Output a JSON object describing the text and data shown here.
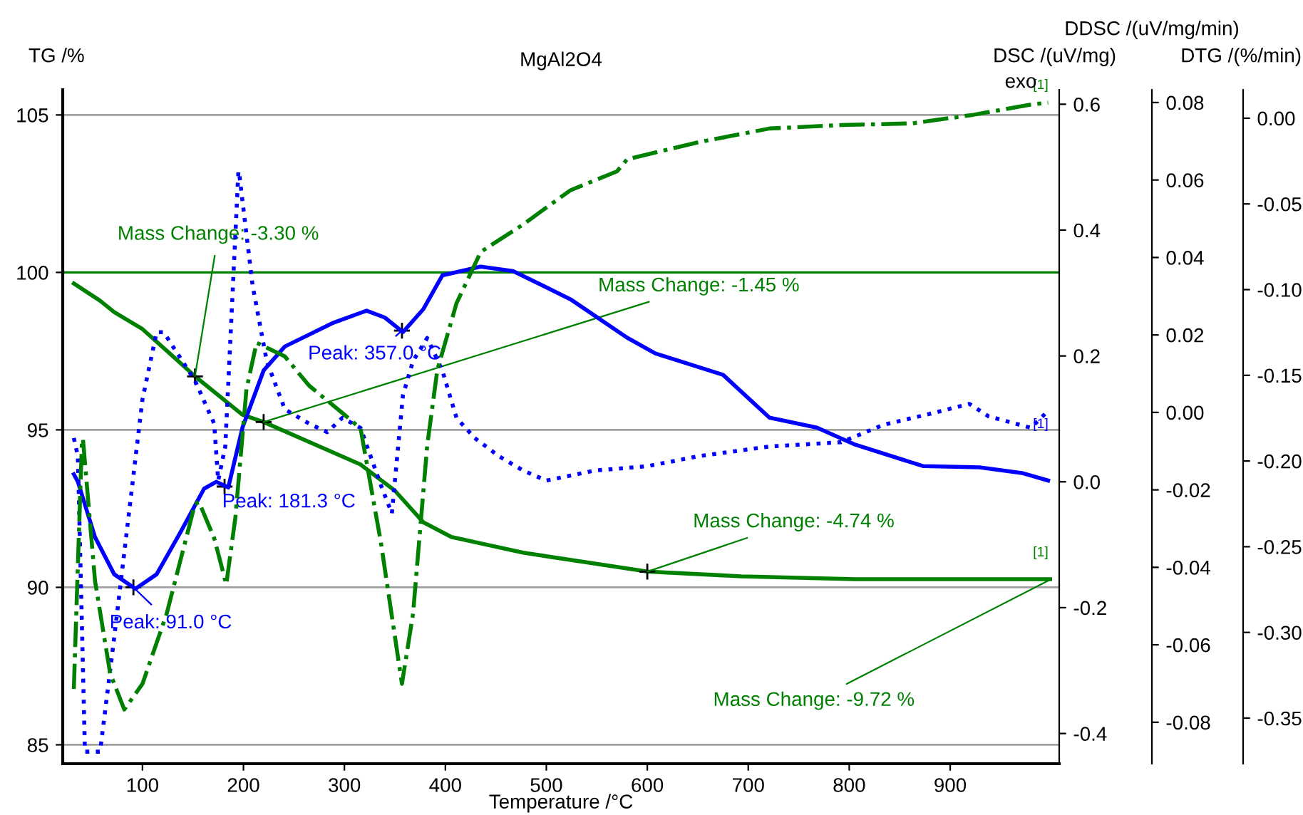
{
  "chart_data": [
    {
      "type": "line",
      "title": "MgAl2O4",
      "xlabel": "Temperature /°C",
      "ylabel": "TG /%",
      "y2label": "DSC /(uV/mg)",
      "y3label": "DDSC /(uV/mg/min)",
      "xlim": [
        21,
        1008
      ],
      "xticks": [
        100,
        200,
        300,
        400,
        500,
        600,
        700,
        800,
        900
      ],
      "ylim": [
        84.4,
        105.8
      ],
      "yticks": [
        85,
        90,
        95,
        100,
        105
      ],
      "y2lim": [
        -0.448,
        0.623
      ],
      "y2ticks": [
        {
          "value": -0.4,
          "label": "-0.4"
        },
        {
          "value": -0.2,
          "label": "-0.2"
        },
        {
          "value": 0,
          "label": "0.0"
        },
        0.2,
        0.4,
        0.6
      ],
      "y3lim": [
        -0.0907,
        0.0833
      ],
      "y3ticks": [
        {
          "value": -0.08,
          "label": "-0.08"
        },
        {
          "value": -0.06,
          "label": "-0.06"
        },
        {
          "value": -0.04,
          "label": "-0.04"
        },
        {
          "value": -0.02,
          "label": "-0.02"
        },
        {
          "value": 0,
          "label": "0.00"
        },
        0.02,
        0.04,
        0.06,
        0.08
      ],
      "grid": "y",
      "series": [
        {
          "color": "#008000",
          "line_style": "solid",
          "x": [
            32,
            58,
            72,
            100,
            128,
            152,
            199,
            220,
            316,
            350,
            378,
            406,
            477,
            600,
            693,
            806,
            999
          ],
          "values": [
            99.65,
            99.1,
            98.74,
            98.2,
            97.4,
            96.7,
            95.48,
            95.25,
            93.9,
            93.07,
            92.07,
            91.6,
            91.1,
            90.5,
            90.35,
            90.26,
            90.26
          ]
        },
        {
          "axis": "y2",
          "color": "#0000ff",
          "line_style": "solid",
          "x": [
            32,
            36,
            53,
            72,
            93,
            114,
            138,
            161,
            173,
            185,
            199,
            220,
            241,
            288,
            322,
            340,
            358,
            378,
            397,
            435,
            467,
            524,
            580,
            608,
            675,
            721,
            768,
            806,
            873,
            929,
            971,
            997
          ],
          "values": [
            0.012,
            0.0,
            -0.088,
            -0.147,
            -0.17,
            -0.147,
            -0.079,
            -0.011,
            0.0,
            -0.009,
            0.086,
            0.177,
            0.215,
            0.252,
            0.272,
            0.261,
            0.238,
            0.274,
            0.328,
            0.342,
            0.335,
            0.29,
            0.229,
            0.204,
            0.17,
            0.102,
            0.086,
            0.059,
            0.025,
            0.023,
            0.014,
            0.002
          ]
        },
        {
          "axis": "y3",
          "color": "#0000ff",
          "line_style": "dotted",
          "x": [
            32,
            36,
            43,
            58,
            72,
            100,
            114,
            121,
            152,
            171,
            175,
            182,
            195,
            196,
            209,
            223,
            241,
            265,
            283,
            298,
            316,
            336,
            347,
            358,
            368,
            382,
            397,
            411,
            429,
            453,
            477,
            500,
            548,
            600,
            651,
            721,
            792,
            834,
            881,
            919,
            938,
            980,
            997
          ],
          "values": [
            -0.0066,
            -0.0113,
            -0.0876,
            -0.0876,
            -0.0581,
            0.0034,
            0.0207,
            0.0207,
            0.0082,
            -0.0029,
            -0.0176,
            -0.0088,
            0.0623,
            0.0612,
            0.0329,
            0.0133,
            0.0008,
            -0.0029,
            -0.0051,
            -0.0014,
            -0.004,
            -0.0187,
            -0.0261,
            0.0045,
            0.0133,
            0.0192,
            0.0108,
            -0.0014,
            -0.0066,
            -0.0113,
            -0.015,
            -0.0176,
            -0.015,
            -0.0139,
            -0.0113,
            -0.0088,
            -0.0077,
            -0.0032,
            -0.0003,
            0.0022,
            -0.001,
            -0.004,
            0.0004
          ]
        }
      ],
      "ref_lines": [
        {
          "axis": "y",
          "value": 100,
          "color": "#008000"
        }
      ],
      "annotations": [
        {
          "text": "Mass Change: -3.30 %",
          "x": 152,
          "y": 96.7
        },
        {
          "text": "Mass Change: -1.45 %",
          "x": 220,
          "y": 95.25
        },
        {
          "text": "Mass Change: -4.74 %",
          "x": 600,
          "y": 90.5
        },
        {
          "text": "Mass Change: -9.72 %",
          "x": 1000,
          "y": 90.26
        },
        {
          "text": "Peak: 91.0 °C",
          "x": 91,
          "y": 90.0
        },
        {
          "text": "Peak: 181.3 °C",
          "x": 181.3,
          "y": 93.2
        },
        {
          "text": "Peak: 357.0 °C",
          "x": 357,
          "y": 98.15
        },
        "[1]",
        "[1]",
        "[1]",
        "exo"
      ]
    },
    {
      "type": "line",
      "ylabel": "DTG /(%/min)",
      "tick_labels": "y",
      "xlim": [
        21,
        1008
      ],
      "ylim": [
        -0.3766,
        0.0166
      ],
      "yticks": [
        {
          "value": -0.35,
          "label": "-0.35"
        },
        {
          "value": -0.3,
          "label": "-0.30"
        },
        {
          "value": -0.25,
          "label": "-0.25"
        },
        {
          "value": -0.2,
          "label": "-0.20"
        },
        {
          "value": -0.15,
          "label": "-0.15"
        },
        {
          "value": -0.1,
          "label": "-0.10"
        },
        {
          "value": -0.05,
          "label": "-0.05"
        },
        {
          "value": 0,
          "label": "0.00"
        }
      ],
      "series": [
        {
          "color": "#008000",
          "line_style": "dashdot",
          "x": [
            32,
            40,
            41,
            53,
            68,
            82,
            100,
            124,
            152,
            156,
            171,
            183,
            192,
            203,
            213,
            241,
            265,
            298,
            316,
            336,
            357,
            368,
            382,
            392,
            411,
            435,
            477,
            505,
            524,
            570,
            580,
            608,
            651,
            721,
            792,
            863,
            923,
            980,
            997
          ],
          "values": [
            -0.333,
            -0.189,
            -0.187,
            -0.27,
            -0.324,
            -0.345,
            -0.33,
            -0.289,
            -0.225,
            -0.224,
            -0.245,
            -0.272,
            -0.233,
            -0.158,
            -0.131,
            -0.139,
            -0.156,
            -0.172,
            -0.181,
            -0.247,
            -0.33,
            -0.289,
            -0.191,
            -0.147,
            -0.108,
            -0.078,
            -0.062,
            -0.05,
            -0.042,
            -0.031,
            -0.024,
            -0.02,
            -0.014,
            -0.006,
            -0.004,
            -0.003,
            0.002,
            0.008,
            0.009
          ]
        }
      ]
    }
  ]
}
